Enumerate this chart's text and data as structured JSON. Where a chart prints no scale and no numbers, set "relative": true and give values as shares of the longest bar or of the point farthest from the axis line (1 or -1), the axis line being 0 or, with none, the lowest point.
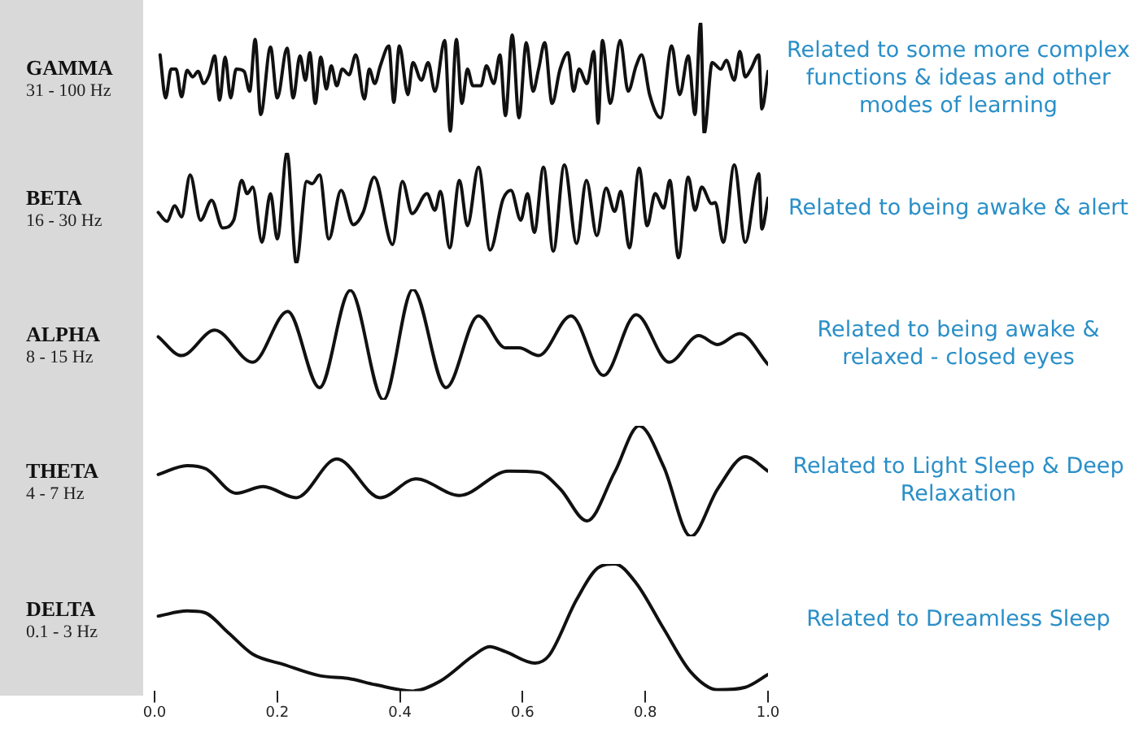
{
  "chart_data": [
    {
      "type": "line",
      "title": "GAMMA",
      "subtitle": "31 - 100 Hz",
      "annotations": [
        "Related to some more complex functions & ideas and other modes of learning"
      ],
      "relative": true,
      "color": "#111111",
      "marker": "none",
      "legend": false,
      "grid": false,
      "tick_labels": false,
      "xlim": [
        0,
        1
      ],
      "x": [
        0.009,
        0.018,
        0.027,
        0.035,
        0.044,
        0.053,
        0.062,
        0.071,
        0.08,
        0.089,
        0.098,
        0.106,
        0.115,
        0.124,
        0.133,
        0.146,
        0.155,
        0.164,
        0.173,
        0.189,
        0.2,
        0.216,
        0.226,
        0.237,
        0.246,
        0.253,
        0.262,
        0.271,
        0.28,
        0.288,
        0.297,
        0.306,
        0.317,
        0.328,
        0.342,
        0.35,
        0.359,
        0.368,
        0.382,
        0.39,
        0.399,
        0.413,
        0.421,
        0.435,
        0.446,
        0.457,
        0.473,
        0.482,
        0.492,
        0.501,
        0.51,
        0.519,
        0.532,
        0.541,
        0.553,
        0.563,
        0.572,
        0.583,
        0.594,
        0.606,
        0.617,
        0.626,
        0.636,
        0.648,
        0.661,
        0.674,
        0.683,
        0.692,
        0.705,
        0.716,
        0.723,
        0.73,
        0.743,
        0.759,
        0.772,
        0.785,
        0.794,
        0.807,
        0.825,
        0.843,
        0.856,
        0.87,
        0.881,
        0.89,
        0.896,
        0.909,
        0.923,
        0.932,
        0.945,
        0.954,
        0.963,
        0.972,
        0.985,
        0.99,
        1.0
      ],
      "values": [
        0.71,
        0.32,
        0.58,
        0.58,
        0.33,
        0.57,
        0.51,
        0.56,
        0.45,
        0.53,
        0.7,
        0.3,
        0.69,
        0.32,
        0.58,
        0.56,
        0.38,
        0.85,
        0.17,
        0.78,
        0.32,
        0.77,
        0.32,
        0.7,
        0.48,
        0.73,
        0.27,
        0.69,
        0.4,
        0.61,
        0.43,
        0.58,
        0.53,
        0.71,
        0.31,
        0.58,
        0.45,
        0.61,
        0.79,
        0.28,
        0.79,
        0.35,
        0.64,
        0.48,
        0.64,
        0.38,
        0.84,
        0.02,
        0.85,
        0.27,
        0.58,
        0.43,
        0.43,
        0.61,
        0.45,
        0.71,
        0.16,
        0.89,
        0.14,
        0.82,
        0.38,
        0.58,
        0.82,
        0.27,
        0.58,
        0.73,
        0.38,
        0.58,
        0.45,
        0.74,
        0.09,
        0.84,
        0.27,
        0.84,
        0.38,
        0.61,
        0.71,
        0.35,
        0.14,
        0.79,
        0.35,
        0.7,
        0.17,
        1,
        0,
        0.64,
        0.58,
        0.66,
        0.48,
        0.74,
        0.51,
        0.58,
        0.71,
        0.22,
        0.56
      ]
    },
    {
      "type": "line",
      "title": "BETA",
      "subtitle": "16 - 30 Hz",
      "annotations": [
        "Related to being awake & alert"
      ],
      "relative": true,
      "color": "#111111",
      "marker": "none",
      "legend": false,
      "grid": false,
      "tick_labels": false,
      "xlim": [
        0,
        1
      ],
      "x": [
        0.006,
        0.02,
        0.033,
        0.044,
        0.058,
        0.075,
        0.093,
        0.111,
        0.129,
        0.142,
        0.151,
        0.16,
        0.175,
        0.189,
        0.2,
        0.216,
        0.231,
        0.248,
        0.257,
        0.269,
        0.284,
        0.304,
        0.324,
        0.34,
        0.358,
        0.388,
        0.404,
        0.42,
        0.444,
        0.457,
        0.466,
        0.481,
        0.497,
        0.51,
        0.528,
        0.547,
        0.568,
        0.581,
        0.597,
        0.608,
        0.619,
        0.634,
        0.65,
        0.668,
        0.688,
        0.704,
        0.721,
        0.736,
        0.75,
        0.76,
        0.774,
        0.79,
        0.803,
        0.816,
        0.83,
        0.84,
        0.854,
        0.87,
        0.881,
        0.892,
        0.908,
        0.914,
        0.927,
        0.945,
        0.963,
        0.985,
        0.99,
        1.0
      ],
      "values": [
        0.46,
        0.38,
        0.52,
        0.42,
        0.8,
        0.39,
        0.57,
        0.32,
        0.39,
        0.75,
        0.63,
        0.69,
        0.19,
        0.63,
        0.22,
        1,
        0,
        0.74,
        0.72,
        0.8,
        0.22,
        0.66,
        0.35,
        0.46,
        0.78,
        0.17,
        0.74,
        0.45,
        0.63,
        0.48,
        0.65,
        0.14,
        0.75,
        0.34,
        0.87,
        0.12,
        0.58,
        0.66,
        0.39,
        0.63,
        0.28,
        0.87,
        0.11,
        0.89,
        0.18,
        0.75,
        0.25,
        0.68,
        0.47,
        0.65,
        0.14,
        0.86,
        0.34,
        0.63,
        0.5,
        0.75,
        0.05,
        0.78,
        0.48,
        0.69,
        0.54,
        0.55,
        0.19,
        0.89,
        0.19,
        0.81,
        0.31,
        0.59
      ]
    },
    {
      "type": "line",
      "title": "ALPHA",
      "subtitle": "8 - 15 Hz",
      "annotations": [
        "Related to being awake & relaxed - closed eyes"
      ],
      "relative": true,
      "color": "#111111",
      "marker": "none",
      "legend": false,
      "grid": false,
      "tick_labels": false,
      "xlim": [
        0,
        1
      ],
      "x": [
        0.006,
        0.044,
        0.098,
        0.16,
        0.217,
        0.269,
        0.319,
        0.373,
        0.421,
        0.475,
        0.528,
        0.572,
        0.594,
        0.626,
        0.679,
        0.732,
        0.785,
        0.839,
        0.887,
        0.918,
        0.954,
        1.0
      ],
      "values": [
        0.57,
        0.4,
        0.63,
        0.34,
        0.8,
        0.11,
        0.99,
        0,
        1,
        0.11,
        0.76,
        0.47,
        0.47,
        0.4,
        0.76,
        0.22,
        0.77,
        0.34,
        0.58,
        0.5,
        0.6,
        0.32
      ]
    },
    {
      "type": "line",
      "title": "THETA",
      "subtitle": "4 - 7 Hz",
      "annotations": [
        "Related to Light Sleep & Deep Relaxation"
      ],
      "relative": true,
      "color": "#111111",
      "marker": "none",
      "legend": false,
      "grid": false,
      "tick_labels": false,
      "xlim": [
        0,
        1
      ],
      "x": [
        0.006,
        0.053,
        0.084,
        0.133,
        0.177,
        0.231,
        0.297,
        0.368,
        0.426,
        0.497,
        0.577,
        0.626,
        0.661,
        0.705,
        0.75,
        0.79,
        0.83,
        0.874,
        0.918,
        0.963,
        1.0
      ],
      "values": [
        0.56,
        0.64,
        0.61,
        0.39,
        0.45,
        0.35,
        0.7,
        0.35,
        0.52,
        0.37,
        0.59,
        0.58,
        0.43,
        0.14,
        0.58,
        1,
        0.63,
        0,
        0.43,
        0.72,
        0.59
      ]
    },
    {
      "type": "line",
      "title": "DELTA",
      "subtitle": "0.1 - 3 Hz",
      "annotations": [
        "Related to Dreamless Sleep"
      ],
      "relative": true,
      "color": "#111111",
      "marker": "none",
      "legend": false,
      "grid": false,
      "tick_labels": "x",
      "xlim": [
        0,
        1
      ],
      "xticks": [
        {
          "value": 0,
          "label": "0.0"
        },
        {
          "value": 0.2,
          "label": "0.2"
        },
        {
          "value": 0.4,
          "label": "0.4"
        },
        {
          "value": 0.6,
          "label": "0.6"
        },
        {
          "value": 0.8,
          "label": "0.8"
        },
        {
          "value": 1,
          "label": "1.0"
        }
      ],
      "x": [
        0.006,
        0.053,
        0.08,
        0.12,
        0.16,
        0.21,
        0.27,
        0.315,
        0.36,
        0.42,
        0.466,
        0.52,
        0.546,
        0.572,
        0.62,
        0.643,
        0.688,
        0.723,
        0.75,
        0.785,
        0.83,
        0.874,
        0.918,
        0.963,
        1.0
      ],
      "values": [
        0.59,
        0.63,
        0.62,
        0.46,
        0.29,
        0.21,
        0.12,
        0.1,
        0.05,
        0,
        0.08,
        0.28,
        0.35,
        0.31,
        0.22,
        0.28,
        0.72,
        0.97,
        1,
        0.85,
        0.49,
        0.15,
        0.01,
        0.03,
        0.13
      ]
    }
  ]
}
